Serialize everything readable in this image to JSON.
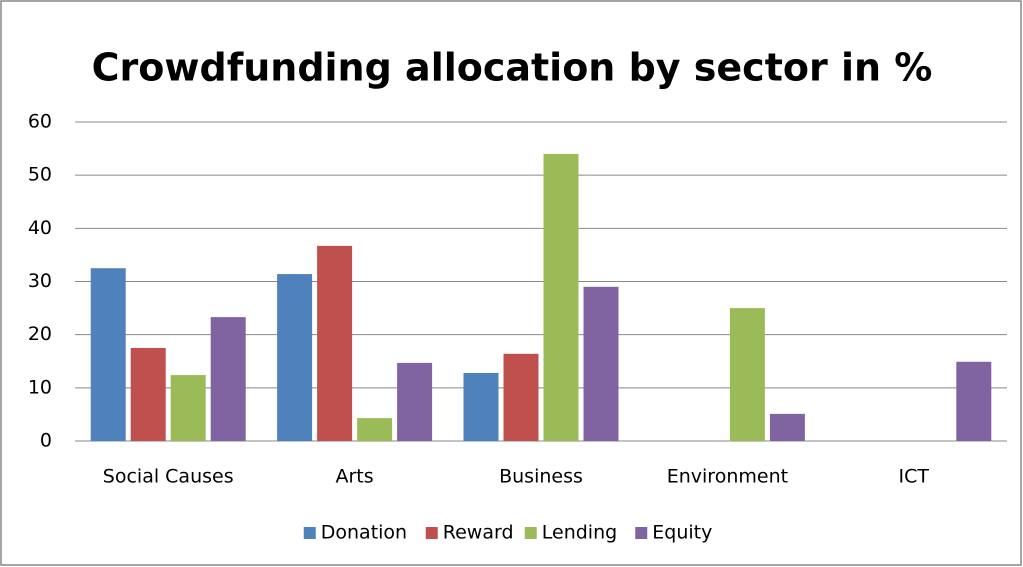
{
  "chart_data": {
    "type": "bar",
    "title": "Crowdfunding allocation by sector in %",
    "categories": [
      "Social Causes",
      "Arts",
      "Business",
      "Environment",
      "ICT"
    ],
    "series": [
      {
        "name": "Donation",
        "color": "#4f81bd",
        "values": [
          32.5,
          31.4,
          12.8,
          0,
          0
        ]
      },
      {
        "name": "Reward",
        "color": "#c0504d",
        "values": [
          17.5,
          36.7,
          16.4,
          0,
          0
        ]
      },
      {
        "name": "Lending",
        "color": "#9bbb59",
        "values": [
          12.4,
          4.3,
          54,
          25,
          0
        ]
      },
      {
        "name": "Equity",
        "color": "#8064a2",
        "values": [
          23.3,
          14.7,
          29,
          5.1,
          14.9
        ]
      }
    ],
    "ylim": [
      0,
      60
    ],
    "yticks": [
      0,
      10,
      20,
      30,
      40,
      50,
      60
    ],
    "grid": true,
    "legend": "bottom"
  }
}
